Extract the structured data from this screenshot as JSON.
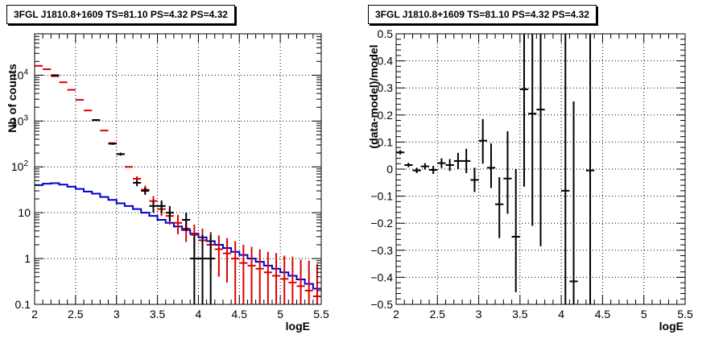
{
  "chart_data": [
    {
      "type": "histogram",
      "title": "3FGL J1810.8+1609 TS=81.10 PS=4.32 PS=4.32",
      "xlabel": "logE",
      "ylabel": "Nb of counts",
      "xlim": [
        2,
        5.5
      ],
      "ylim": [
        0.1,
        80000
      ],
      "y_scale": "log",
      "grid": true,
      "x_ticks": [
        "2",
        "2.5",
        "3",
        "3.5",
        "4",
        "4.5",
        "5",
        "5.5"
      ],
      "y_ticks": [
        "0.1",
        "1",
        "10",
        "10^2",
        "10^3",
        "10^4"
      ],
      "bin_width": 0.1,
      "series": [
        {
          "color": "#0000cc",
          "style": "step",
          "x": [
            2.0,
            2.1,
            2.2,
            2.3,
            2.4,
            2.5,
            2.6,
            2.7,
            2.8,
            2.9,
            3.0,
            3.1,
            3.2,
            3.3,
            3.4,
            3.5,
            3.6,
            3.7,
            3.8,
            3.9,
            4.0,
            4.1,
            4.2,
            4.3,
            4.4,
            4.5,
            4.6,
            4.7,
            4.8,
            4.9,
            5.0,
            5.1,
            5.2,
            5.3,
            5.4
          ],
          "values": [
            40,
            43,
            44,
            41,
            37,
            33,
            29,
            26,
            22,
            19,
            16,
            14,
            12,
            10,
            8.5,
            7.0,
            6.0,
            5.0,
            4.2,
            3.5,
            2.9,
            2.4,
            2.0,
            1.7,
            1.4,
            1.2,
            1.0,
            0.85,
            0.7,
            0.6,
            0.5,
            0.42,
            0.35,
            0.28,
            0.22
          ]
        },
        {
          "color": "#dd0000",
          "style": "errorbar",
          "x": [
            2.05,
            2.15,
            2.25,
            2.35,
            2.45,
            2.55,
            2.65,
            2.75,
            2.85,
            2.95,
            3.05,
            3.15,
            3.25,
            3.35,
            3.45,
            3.55,
            3.65,
            3.75,
            3.85,
            3.95,
            4.05,
            4.15,
            4.25,
            4.35,
            4.45,
            4.55,
            4.65,
            4.75,
            4.85,
            4.95,
            5.05,
            5.15,
            5.25,
            5.35,
            5.45
          ],
          "values": [
            16000,
            13500,
            9500,
            7000,
            4800,
            2900,
            1700,
            1050,
            620,
            330,
            190,
            100,
            55,
            32,
            18,
            12,
            8.5,
            6.0,
            4.5,
            3.3,
            2.5,
            2.0,
            1.6,
            1.3,
            1.0,
            0.8,
            0.7,
            0.6,
            0.5,
            0.42,
            0.36,
            0.3,
            0.25,
            0.2,
            0.15
          ],
          "err_low": [
            0,
            0,
            0,
            0,
            0,
            0,
            0,
            0,
            0,
            0,
            0,
            0,
            5,
            5,
            4,
            3.5,
            3,
            2.6,
            2.2,
            2,
            1.6,
            1.4,
            1.2,
            1.0,
            0.9,
            0.75,
            0.65,
            0.56,
            0.47,
            0.39,
            0.33,
            0.28,
            0.23,
            0.19,
            0.14
          ],
          "err_high": [
            0,
            0,
            0,
            0,
            0,
            0,
            0,
            0,
            0,
            0,
            0,
            0,
            7,
            7,
            5,
            4,
            3.5,
            3,
            2.6,
            2.2,
            2.0,
            1.8,
            1.6,
            1.5,
            1.4,
            1.2,
            1.1,
            1.0,
            0.9,
            0.9,
            0.8,
            0.8,
            0.7,
            0.7,
            0.6
          ]
        },
        {
          "color": "#000000",
          "style": "errorbar",
          "x": [
            2.25,
            2.75,
            2.95,
            3.05,
            3.25,
            3.35,
            3.45,
            3.55,
            3.65,
            3.85,
            3.95,
            4.05,
            4.15
          ],
          "values": [
            10000,
            1050,
            320,
            190,
            45,
            30,
            14,
            14,
            10,
            7,
            1,
            1,
            1
          ],
          "err_low": [
            100,
            32,
            18,
            14,
            7,
            5.5,
            4,
            4,
            3.5,
            3,
            0.9,
            0.9,
            0.9
          ],
          "err_high": [
            100,
            32,
            18,
            14,
            7,
            5.5,
            4,
            4.5,
            4,
            3,
            2.3,
            2.3,
            2.3
          ]
        }
      ]
    },
    {
      "type": "scatter",
      "title": "3FGL J1810.8+1609 TS=81.10 PS=4.32 PS=4.32",
      "xlabel": "logE",
      "ylabel": "(data-model)/model",
      "xlim": [
        2,
        5.5
      ],
      "ylim": [
        -0.5,
        0.5
      ],
      "grid": true,
      "x_ticks": [
        "2",
        "2.5",
        "3",
        "3.5",
        "4",
        "4.5",
        "5",
        "5.5"
      ],
      "y_ticks": [
        "-0.5",
        "-0.4",
        "-0.3",
        "-0.2",
        "-0.1",
        "0",
        "0.1",
        "0.2",
        "0.3",
        "0.4",
        "0.5"
      ],
      "series": [
        {
          "color": "#000000",
          "style": "errorbar",
          "x": [
            2.05,
            2.15,
            2.25,
            2.35,
            2.45,
            2.55,
            2.65,
            2.75,
            2.85,
            2.95,
            3.05,
            3.15,
            3.25,
            3.35,
            3.45,
            3.55,
            3.65,
            3.75,
            4.05,
            4.15,
            4.35
          ],
          "values": [
            0.062,
            0.015,
            -0.005,
            0.01,
            -0.003,
            0.022,
            0.015,
            0.03,
            0.03,
            -0.04,
            0.105,
            0.005,
            -0.13,
            -0.035,
            -0.25,
            0.295,
            0.205,
            0.22,
            -0.08,
            -0.415,
            -0.005
          ],
          "err_low": [
            0.008,
            0.008,
            0.01,
            0.012,
            0.015,
            0.018,
            0.022,
            0.03,
            0.045,
            0.045,
            0.085,
            0.075,
            0.125,
            0.13,
            0.205,
            0.36,
            0.415,
            0.505,
            0.74,
            0.6,
            0.8
          ],
          "err_high": [
            0.008,
            0.008,
            0.01,
            0.012,
            0.015,
            0.018,
            0.022,
            0.03,
            0.045,
            0.045,
            0.08,
            0.09,
            0.1,
            0.175,
            0.25,
            0.36,
            0.42,
            0.6,
            0.9,
            0.665,
            0.8
          ]
        }
      ]
    }
  ]
}
